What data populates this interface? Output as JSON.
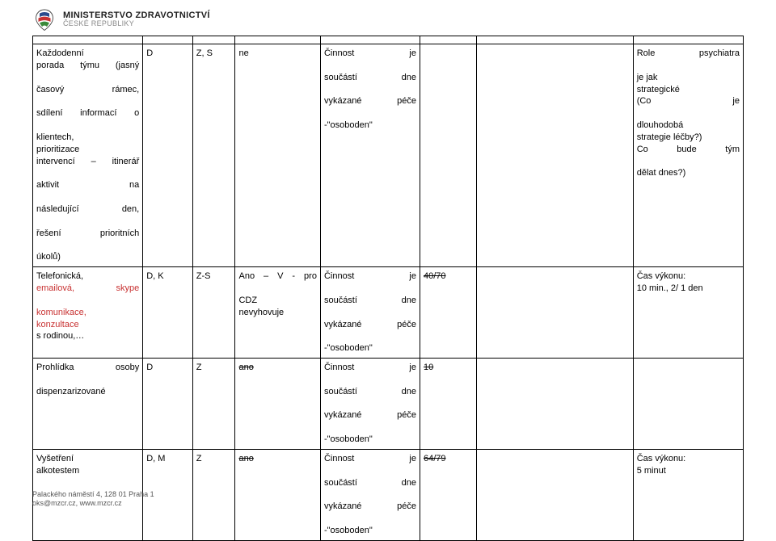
{
  "header": {
    "ministry": "MINISTERSTVO ZDRAVOTNICTVÍ",
    "republic": "ČESKÉ REPUBLIKY",
    "logo_colors": {
      "blue": "#2a4b8d",
      "red": "#c83232",
      "green": "#3a8a3a",
      "outline": "#444"
    }
  },
  "rows": [
    {
      "c1_lines": [
        {
          "t": "Každodenní",
          "j": false
        },
        {
          "t": "porada týmu (jasný",
          "j": true
        },
        {
          "t": "časový rámec,",
          "j": true
        },
        {
          "t": "sdílení informací o",
          "j": true
        },
        {
          "t": "klientech,",
          "j": false
        },
        {
          "t": "prioritizace",
          "j": false
        },
        {
          "t": "intervencí – itinerář",
          "j": true
        },
        {
          "t": "aktivit na",
          "j": true
        },
        {
          "t": "následující den,",
          "j": true
        },
        {
          "t": "řešení prioritních",
          "j": true
        },
        {
          "t": "úkolů)",
          "j": false
        }
      ],
      "c2": "D",
      "c3": "Z, S",
      "c4_lines": [
        {
          "t": "ne",
          "j": false
        }
      ],
      "c5_lines": [
        {
          "t": "Činnost je",
          "j": true
        },
        {
          "t": "součástí dne",
          "j": true
        },
        {
          "t": "vykázané péče",
          "j": true
        },
        {
          "t": "-\"osoboden\"",
          "j": false
        }
      ],
      "c6": "",
      "c7": "",
      "c8_lines": [
        {
          "t": "Role psychiatra",
          "j": true
        },
        {
          "t": "je jak",
          "j": false
        },
        {
          "t": "strategické",
          "j": false
        },
        {
          "t": "(Co je",
          "j": true
        },
        {
          "t": "dlouhodobá",
          "j": false
        },
        {
          "t": "strategie léčby?)",
          "j": false
        },
        {
          "t": " Co bude tým",
          "j": true
        },
        {
          "t": "dělat dnes?)",
          "j": false
        }
      ]
    },
    {
      "c1_lines": [
        {
          "t": "Telefonická,",
          "j": false
        },
        {
          "t": "<span class=\"red\">emailová, skype</span>",
          "j": true,
          "html": true
        },
        {
          "t": "<span class=\"red\">komunikace,</span>",
          "j": false,
          "html": true
        },
        {
          "t": "<span class=\"red\">konzultace</span>",
          "j": false,
          "html": true
        },
        {
          "t": "s rodinou,…",
          "j": false
        }
      ],
      "c2": "D, K",
      "c3": "Z-S",
      "c4_lines": [
        {
          "t": "Ano – V - pro",
          "j": true
        },
        {
          "t": "CDZ",
          "j": false
        },
        {
          "t": "nevyhovuje",
          "j": false
        }
      ],
      "c5_lines": [
        {
          "t": "Činnost je",
          "j": true
        },
        {
          "t": "součástí dne",
          "j": true
        },
        {
          "t": "vykázané péče",
          "j": true
        },
        {
          "t": "-\"osoboden\"",
          "j": false
        }
      ],
      "c6": "40/70",
      "c6_strike": true,
      "c7": "",
      "c8_lines": [
        {
          "t": "Čas výkonu:",
          "j": false
        },
        {
          "t": "10 min., 2/ 1 den",
          "j": false
        }
      ]
    },
    {
      "c1_lines": [
        {
          "t": "Prohlídka osoby",
          "j": true
        },
        {
          "t": "dispenzarizované",
          "j": false
        }
      ],
      "c2": "D",
      "c3": "Z",
      "c4_lines": [
        {
          "t": "<span class=\"strike\">ano</span>",
          "j": false,
          "html": true
        }
      ],
      "c5_lines": [
        {
          "t": "Činnost je",
          "j": true
        },
        {
          "t": "součástí dne",
          "j": true
        },
        {
          "t": "vykázané péče",
          "j": true
        },
        {
          "t": "-\"osoboden\"",
          "j": false
        }
      ],
      "c6": "10",
      "c6_strike": true,
      "c7": "",
      "c8_lines": []
    },
    {
      "c1_lines": [
        {
          "t": "Vyšetření",
          "j": false
        },
        {
          "t": "alkotestem",
          "j": false
        }
      ],
      "c2": "D, M",
      "c3": "Z",
      "c4_lines": [
        {
          "t": "<span class=\"strike\">ano</span>",
          "j": false,
          "html": true
        }
      ],
      "c5_lines": [
        {
          "t": "Činnost je",
          "j": true
        },
        {
          "t": "součástí dne",
          "j": true
        },
        {
          "t": "vykázané péče",
          "j": true
        },
        {
          "t": "-\"osoboden\"",
          "j": false
        }
      ],
      "c6": "64/79",
      "c6_strike": true,
      "c7": "",
      "c8_lines": [
        {
          "t": "Čas výkonu:",
          "j": false
        },
        {
          "t": "5 minut",
          "j": false
        }
      ]
    }
  ],
  "footer": {
    "line1": "Palackého náměstí 4, 128 01 Praha 1",
    "line2": "oks@mzcr.cz, www.mzcr.cz"
  }
}
